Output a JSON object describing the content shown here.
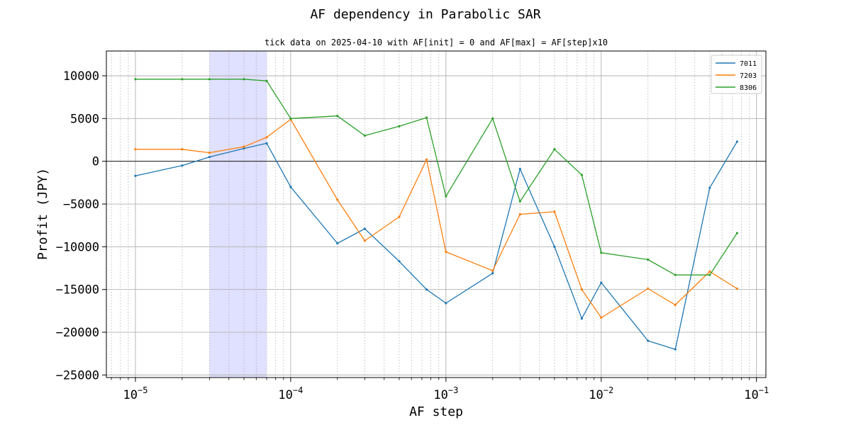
{
  "chart_data": {
    "type": "line",
    "title": "AF dependency in Parabolic SAR",
    "subtitle": "tick data on 2025-04-10 with AF[init] = 0 and AF[max] = AF[step]x10",
    "xlabel": "AF step",
    "ylabel": "Profit (JPY)",
    "xscale": "log",
    "xlim": [
      6.5e-06,
      0.115
    ],
    "ylim": [
      -25300,
      12900
    ],
    "yticks": [
      10000,
      5000,
      0,
      -5000,
      -10000,
      -15000,
      -20000,
      -25000
    ],
    "ytick_labels": [
      "10000",
      "5000",
      "0",
      "−5000",
      "−10000",
      "−15000",
      "−20000",
      "−25000"
    ],
    "xticks": [
      {
        "value": 1e-05,
        "base": "10",
        "exp": "−5"
      },
      {
        "value": 0.0001,
        "base": "10",
        "exp": "−4"
      },
      {
        "value": 0.001,
        "base": "10",
        "exp": "−3"
      },
      {
        "value": 0.01,
        "base": "10",
        "exp": "−2"
      },
      {
        "value": 0.1,
        "base": "10",
        "exp": "−1"
      }
    ],
    "grid": true,
    "zero_line": 0,
    "highlight_span": [
      3e-05,
      7e-05
    ],
    "highlight_color": "#e0e0ff",
    "x": [
      1e-05,
      2e-05,
      3e-05,
      5e-05,
      7e-05,
      0.0001,
      0.0002,
      0.0003,
      0.0005,
      0.00075,
      0.001,
      0.002,
      0.003,
      0.005,
      0.0075,
      0.01,
      0.02,
      0.03,
      0.05,
      0.075
    ],
    "series": [
      {
        "name": "7011",
        "color": "#1f77b4",
        "values": [
          -1700,
          -500,
          500,
          1500,
          2100,
          -3000,
          -9600,
          -7900,
          -11700,
          -15000,
          -16600,
          -13100,
          -900,
          -10000,
          -18400,
          -14200,
          -21000,
          -22000,
          -3100,
          2300
        ]
      },
      {
        "name": "7203",
        "color": "#ff7f0e",
        "values": [
          1400,
          1400,
          1000,
          1700,
          2800,
          4900,
          -4500,
          -9300,
          -6500,
          200,
          -10600,
          -12800,
          -6200,
          -5900,
          -15000,
          -18300,
          -14900,
          -16800,
          -12900,
          -14900
        ]
      },
      {
        "name": "8306",
        "color": "#2ca02c",
        "values": [
          9600,
          9600,
          9600,
          9600,
          9400,
          5000,
          5300,
          3000,
          4100,
          5100,
          -4100,
          5000,
          -4700,
          1400,
          -1600,
          -10700,
          -11500,
          -13300,
          -13300,
          -8400
        ]
      }
    ],
    "legend_position": "top-right"
  }
}
